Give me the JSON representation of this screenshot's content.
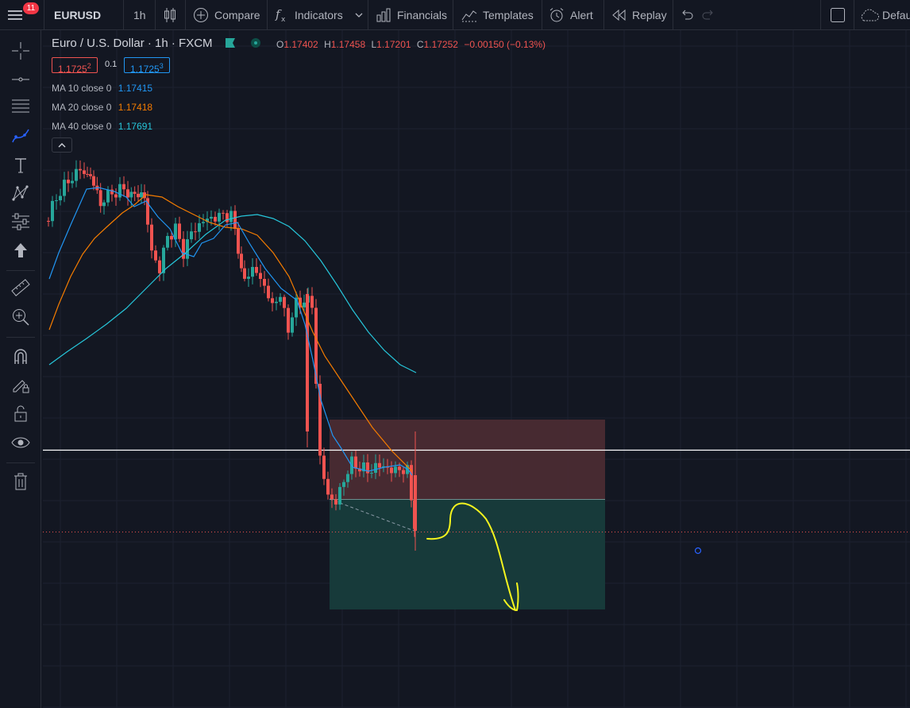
{
  "toolbar": {
    "symbol": "EURUSD",
    "interval": "1h",
    "compare": "Compare",
    "indicators": "Indicators",
    "financials": "Financials",
    "templates": "Templates",
    "alert": "Alert",
    "replay": "Replay",
    "layout": "Defau",
    "menu_badge": "11"
  },
  "legend": {
    "title": "Euro / U.S. Dollar · 1h · FXCM",
    "ohlc": {
      "o_label": "O",
      "o": "1.17402",
      "h_label": "H",
      "h": "1.17458",
      "l_label": "L",
      "l": "1.17201",
      "c_label": "C",
      "c": "1.17252",
      "change": "−0.00150 (−0.13%)"
    },
    "sell_price": "1.1725",
    "sell_sup": "2",
    "spread": "0.1",
    "buy_price": "1.1725",
    "buy_sup": "3",
    "indicators": [
      {
        "label": "MA 10 close 0",
        "value": "1.17415",
        "color": "#2196f3"
      },
      {
        "label": "MA 20 close 0",
        "value": "1.17418",
        "color": "#f57c00"
      },
      {
        "label": "MA 40 close 0",
        "value": "1.17691",
        "color": "#26c6da"
      }
    ]
  },
  "colors": {
    "background": "#131722",
    "up_candle": "#26a69a",
    "down_candle": "#ef5350",
    "stop_zone": "#4a2b33",
    "target_zone": "#173c3c",
    "annotation": "#f5f51e",
    "price_line": "#ffffff"
  },
  "icons": [
    "menu-icon",
    "crosshair-icon",
    "horizontal-line-icon",
    "fib-lines-icon",
    "brush-icon",
    "text-icon",
    "pattern-icon",
    "prediction-icon",
    "arrow-up-icon",
    "ruler-icon",
    "zoom-in-icon",
    "magnet-icon",
    "pencil-lock-icon",
    "unlock-icon",
    "eye-icon",
    "trash-icon"
  ]
}
